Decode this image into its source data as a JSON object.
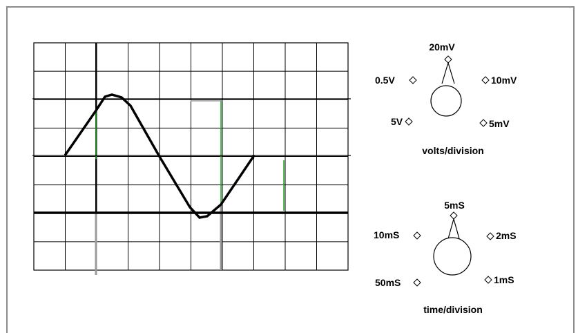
{
  "volts_knob": {
    "title": "volts/division",
    "settings": [
      "20mV",
      "10mV",
      "5mV",
      "5V",
      "0.5V"
    ],
    "selected": "20mV"
  },
  "time_knob": {
    "title": "time/division",
    "settings": [
      "5mS",
      "2mS",
      "1mS",
      "50mS",
      "10mS"
    ],
    "selected": "5mS"
  },
  "screen": {
    "divisions_x": 10,
    "divisions_y": 8,
    "trace_color": "#000000",
    "grid_color": "#000000"
  }
}
